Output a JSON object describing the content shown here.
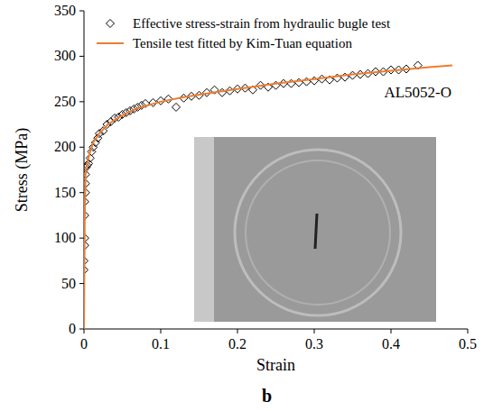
{
  "chart_data": {
    "type": "scatter",
    "xlabel": "Strain",
    "ylabel": "Stress (MPa)",
    "annotations": [
      "AL5052-O"
    ],
    "panel_label": "b",
    "xlim": [
      0,
      0.5
    ],
    "ylim": [
      0,
      350
    ],
    "xticks": [
      0,
      0.1,
      0.2,
      0.3,
      0.4,
      0.5
    ],
    "yticks": [
      0,
      50,
      100,
      150,
      200,
      250,
      300,
      350
    ],
    "grid": false,
    "legend": "upper left",
    "series": [
      {
        "name": "Effective stress-strain from hydraulic bugle test",
        "type": "scatter",
        "marker": "diamond",
        "color": "#000000",
        "x": [
          0,
          0,
          0.001,
          0.001,
          0.001,
          0.001,
          0.002,
          0.002,
          0.002,
          0.003,
          0.004,
          0.006,
          0.008,
          0.01,
          0.012,
          0.015,
          0.018,
          0.02,
          0.025,
          0.03,
          0.035,
          0.04,
          0.045,
          0.05,
          0.055,
          0.06,
          0.065,
          0.07,
          0.075,
          0.08,
          0.09,
          0.1,
          0.11,
          0.12,
          0.13,
          0.14,
          0.15,
          0.16,
          0.17,
          0.18,
          0.19,
          0.2,
          0.21,
          0.22,
          0.23,
          0.24,
          0.25,
          0.26,
          0.27,
          0.28,
          0.29,
          0.3,
          0.31,
          0.32,
          0.33,
          0.34,
          0.35,
          0.36,
          0.37,
          0.38,
          0.39,
          0.4,
          0.41,
          0.42,
          0.435
        ],
        "values": [
          65,
          75,
          92,
          100,
          125,
          140,
          150,
          160,
          170,
          178,
          180,
          182,
          188,
          195,
          200,
          205,
          210,
          215,
          218,
          225,
          228,
          232,
          233,
          236,
          238,
          240,
          242,
          244,
          246,
          248,
          249,
          251,
          253,
          244,
          254,
          256,
          257,
          260,
          263,
          260,
          262,
          264,
          265,
          263,
          268,
          266,
          268,
          270,
          270,
          271,
          272,
          273,
          275,
          274,
          276,
          277,
          279,
          280,
          281,
          283,
          283,
          285,
          285,
          286,
          290
        ]
      },
      {
        "name": "Tensile test fitted by Kim-Tuan equation",
        "type": "line",
        "line_style": "solid",
        "color": "#ed7d31",
        "x": [
          0,
          0.0005,
          0.001,
          0.002,
          0.003,
          0.005,
          0.008,
          0.012,
          0.02,
          0.03,
          0.04,
          0.05,
          0.07,
          0.1,
          0.13,
          0.16,
          0.2,
          0.25,
          0.3,
          0.35,
          0.4,
          0.45,
          0.48
        ],
        "values": [
          0,
          60,
          120,
          170,
          178,
          185,
          195,
          205,
          215,
          224,
          230,
          235,
          243,
          250,
          255,
          259,
          264,
          270,
          275,
          280,
          284,
          288,
          290
        ]
      }
    ]
  }
}
